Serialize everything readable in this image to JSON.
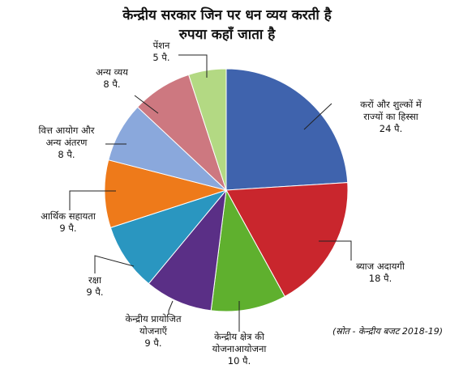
{
  "chart_data": {
    "type": "pie",
    "title": "केन्द्रीय सरकार जिन पर धन व्यय करती है",
    "subtitle": "रुपया कहाँ जाता है",
    "source": "(स्रोत - केन्द्रीय बजट 2018-19)",
    "unit": "पै.",
    "slices": [
      {
        "label": [
          "करों और शुल्कों में",
          "राज्यों का हिस्सा"
        ],
        "value": 24,
        "value_text": "24 पै.",
        "color": "#3f63ad"
      },
      {
        "label": [
          "ब्याज अदायगी"
        ],
        "value": 18,
        "value_text": "18 पै.",
        "color": "#c9262d"
      },
      {
        "label": [
          "केन्द्रीय क्षेत्र की",
          "योजनाआयोजना"
        ],
        "value": 10,
        "value_text": "10 पै.",
        "color": "#5fb02e"
      },
      {
        "label": [
          "केन्द्रीय प्रायोजित",
          "योजनाएँ"
        ],
        "value": 9,
        "value_text": "9 पै.",
        "color": "#5a2f86"
      },
      {
        "label": [
          "रक्षा"
        ],
        "value": 9,
        "value_text": "9 पै.",
        "color": "#2a96c0"
      },
      {
        "label": [
          "आर्थिक सहायता"
        ],
        "value": 9,
        "value_text": "9 पै.",
        "color": "#ee7a1a"
      },
      {
        "label": [
          "वित्त आयोग और",
          "अन्य अंतरण"
        ],
        "value": 8,
        "value_text": "8 पै.",
        "color": "#8aa8dc"
      },
      {
        "label": [
          "अन्य व्यय"
        ],
        "value": 8,
        "value_text": "8 पै.",
        "color": "#cd7880"
      },
      {
        "label": [
          "पेंशन"
        ],
        "value": 5,
        "value_text": "5 पै.",
        "color": "#b3d983"
      }
    ]
  }
}
